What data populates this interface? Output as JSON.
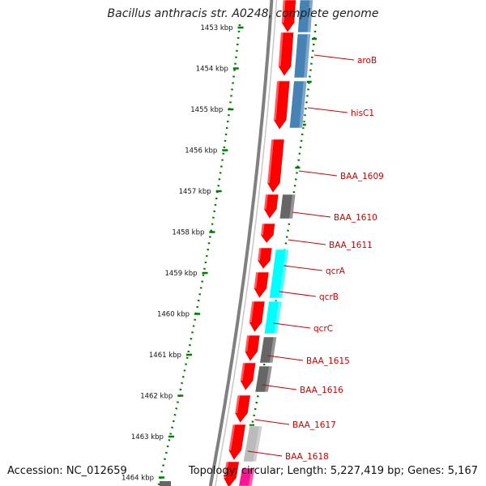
{
  "title": "Bacillus anthracis str. A0248, complete genome",
  "footer": {
    "accession": "Accession: NC_012659",
    "summary": "Topology: circular; Length: 5,227,419 bp; Genes: 5,167"
  },
  "colors": {
    "cds": "#ff0000",
    "cds_dark": "#b30000",
    "gene_blue": "#4682b4",
    "gene_cyan": "#00ffff",
    "gene_gray": "#666666",
    "gene_lightgray": "#bbbbbb",
    "gene_pink": "#ff1493",
    "scale": "#007a00",
    "backbone": "#808080",
    "label": "#cc0000"
  },
  "scale_ticks": [
    "1453 kbp",
    "1454 kbp",
    "1455 kbp",
    "1456 kbp",
    "1457 kbp",
    "1458 kbp",
    "1459 kbp",
    "1460 kbp",
    "1461 kbp",
    "1462 kbp",
    "1463 kbp",
    "1464 kbp"
  ],
  "gene_labels": [
    "aroB",
    "hisC1",
    "BAA_1609",
    "BAA_1610",
    "BAA_1611",
    "qcrA",
    "qcrB",
    "qcrC",
    "BAA_1615",
    "BAA_1616",
    "BAA_1617",
    "BAA_1618"
  ]
}
